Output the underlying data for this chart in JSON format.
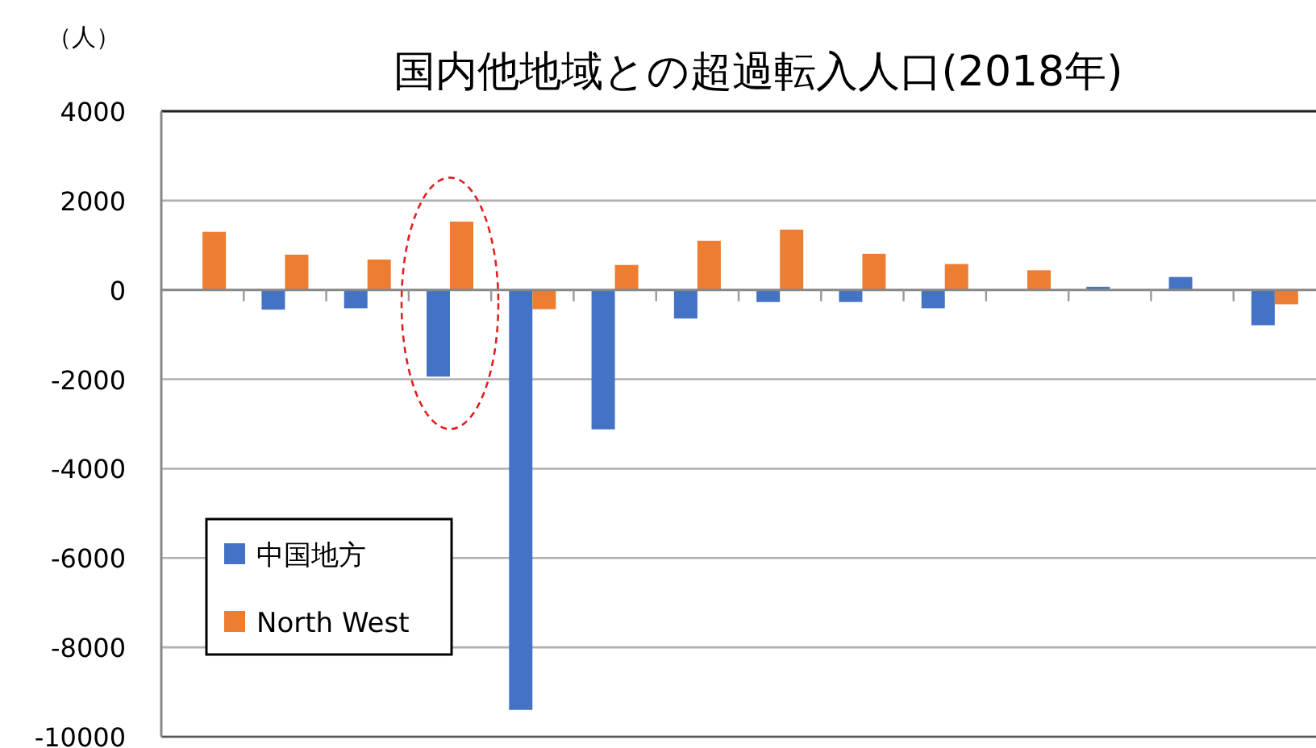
{
  "chart_data": {
    "type": "bar",
    "title": "国内他地域との超過転入人口(2018年)",
    "ylabel": "（人）",
    "categories": [
      null,
      null,
      null,
      null,
      null,
      null,
      null,
      null,
      null,
      null,
      null,
      null,
      null,
      null
    ],
    "series": [
      {
        "name": "中国地方",
        "color": "#4472c4",
        "values": [
          0,
          -440,
          -410,
          -1940,
          -9400,
          -3120,
          -640,
          -270,
          -270,
          -410,
          0,
          70,
          290,
          -790
        ]
      },
      {
        "name": "North West",
        "color": "#ed7d31",
        "values": [
          1300,
          790,
          680,
          1530,
          -430,
          560,
          1100,
          1350,
          810,
          580,
          440,
          0,
          0,
          -320
        ]
      }
    ],
    "ylim": [
      -10000,
      4000
    ],
    "yticks": [
      4000,
      2000,
      0,
      -2000,
      -4000,
      -6000,
      -8000,
      -10000
    ],
    "grid": "y",
    "legend": "bottom left"
  }
}
